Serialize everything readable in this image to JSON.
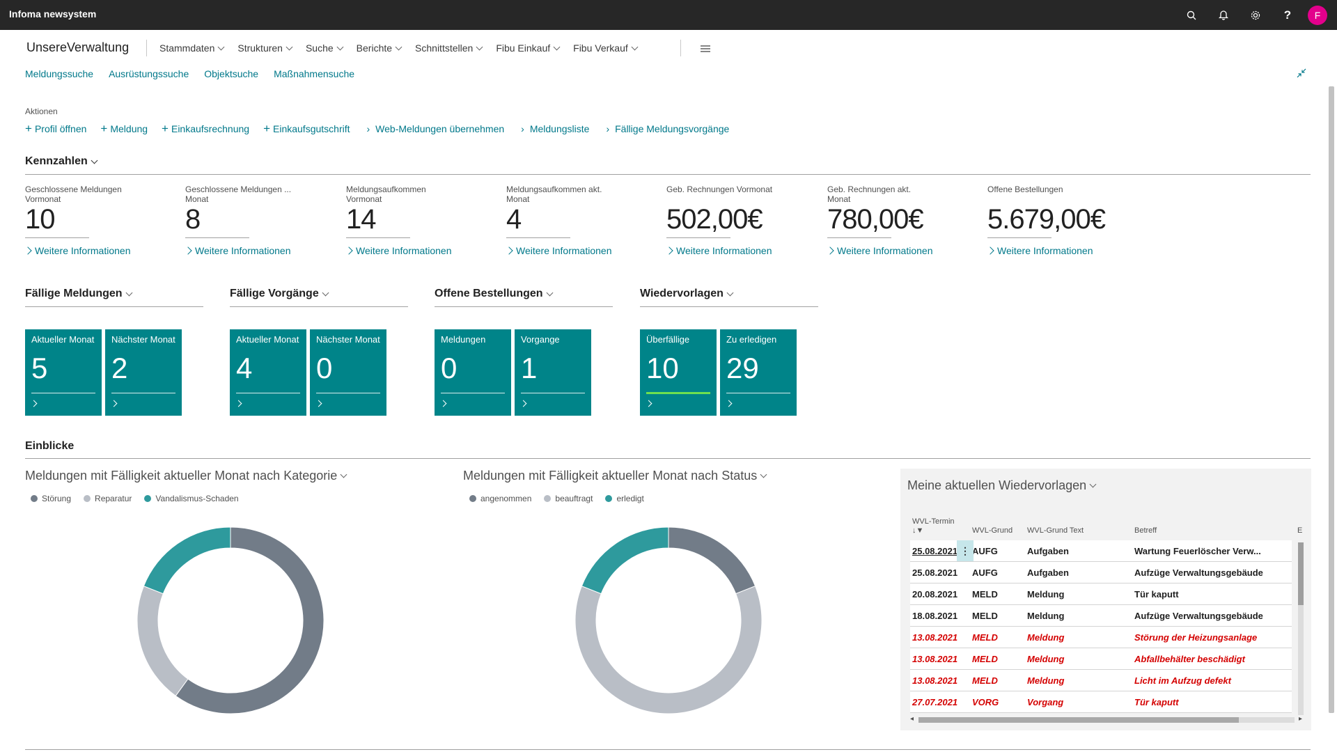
{
  "app": {
    "title": "Infoma newsystem",
    "avatar_letter": "F"
  },
  "topbar_icons": [
    "search-icon",
    "bell-icon",
    "gear-icon",
    "help-icon"
  ],
  "nav": {
    "company": "UnsereVerwaltung",
    "items": [
      {
        "label": "Stammdaten"
      },
      {
        "label": "Strukturen"
      },
      {
        "label": "Suche"
      },
      {
        "label": "Berichte"
      },
      {
        "label": "Schnittstellen"
      },
      {
        "label": "Fibu Einkauf"
      },
      {
        "label": "Fibu Verkauf"
      }
    ]
  },
  "sublinks": [
    "Meldungssuche",
    "Ausrüstungssuche",
    "Objektsuche",
    "Maßnahmensuche"
  ],
  "actions": {
    "label": "Aktionen",
    "items": [
      {
        "icon": "plus-icon",
        "label": "Profil öffnen"
      },
      {
        "icon": "plus-icon",
        "label": "Meldung"
      },
      {
        "icon": "plus-icon",
        "label": "Einkaufsrechnung"
      },
      {
        "icon": "plus-icon",
        "label": "Einkaufsgutschrift"
      },
      {
        "icon": "chevron-right-icon",
        "label": "Web-Meldungen übernehmen"
      },
      {
        "icon": "chevron-right-icon",
        "label": "Meldungsliste"
      },
      {
        "icon": "chevron-right-icon",
        "label": "Fällige Meldungsvorgänge"
      }
    ]
  },
  "kennzahlen": {
    "title": "Kennzahlen",
    "more_label": "Weitere Informationen",
    "items": [
      {
        "label1": "Geschlossene Meldungen",
        "label2": "Vormonat",
        "value": "10"
      },
      {
        "label1": "Geschlossene Meldungen ...",
        "label2": "Monat",
        "value": "8"
      },
      {
        "label1": "Meldungsaufkommen",
        "label2": "Vormonat",
        "value": "14"
      },
      {
        "label1": "Meldungsaufkommen akt.",
        "label2": "Monat",
        "value": "4"
      },
      {
        "label1": "Geb. Rechnungen Vormonat",
        "label2": "",
        "value": "502,00€"
      },
      {
        "label1": "Geb. Rechnungen akt.",
        "label2": "Monat",
        "value": "780,00€"
      },
      {
        "label1": "Offene Bestellungen",
        "label2": "",
        "value": "5.679,00€"
      }
    ]
  },
  "tile_groups": [
    {
      "title": "Fällige Meldungen",
      "tiles": [
        {
          "label": "Aktueller Monat",
          "value": "5"
        },
        {
          "label": "Nächster Monat",
          "value": "2"
        }
      ]
    },
    {
      "title": "Fällige Vorgänge",
      "tiles": [
        {
          "label": "Aktueller Monat",
          "value": "4"
        },
        {
          "label": "Nächster Monat",
          "value": "0"
        }
      ]
    },
    {
      "title": "Offene Bestellungen",
      "tiles": [
        {
          "label": "Meldungen",
          "value": "0"
        },
        {
          "label": "Vorgange",
          "value": "1"
        }
      ]
    },
    {
      "title": "Wiedervorlagen",
      "tiles": [
        {
          "label": "Überfällige",
          "value": "10"
        },
        {
          "label": "Zu erledigen",
          "value": "29"
        }
      ]
    }
  ],
  "einblicke": {
    "title": "Einblicke"
  },
  "chart_data": [
    {
      "type": "pie",
      "title": "Meldungen mit Fälligkeit aktueller Monat nach Kategorie",
      "categories": [
        "Störung",
        "Reparatur",
        "Vandalismus-Schaden"
      ],
      "values": [
        60,
        21,
        19
      ],
      "colors": [
        "#727c88",
        "#b9bec6",
        "#2e9a9d"
      ],
      "legend": "top-left"
    },
    {
      "type": "pie",
      "title": "Meldungen mit Fälligkeit aktueller Monat nach Status",
      "categories": [
        "angenommen",
        "beauftragt",
        "erledigt"
      ],
      "values": [
        19,
        62,
        19
      ],
      "colors": [
        "#727c88",
        "#b9bec6",
        "#2e9a9d"
      ],
      "legend": "top-left"
    }
  ],
  "wiedervorlagen": {
    "title": "Meine aktuellen Wiedervorlagen",
    "columns": [
      "WVL-Termin",
      "WVL-Grund",
      "WVL-Grund Text",
      "Betreff",
      "E"
    ],
    "rows": [
      {
        "date": "25.08.2021",
        "grund": "AUFG",
        "text": "Aufgaben",
        "betreff": "Wartung Feuerlöscher Verw...",
        "overdue": false
      },
      {
        "date": "25.08.2021",
        "grund": "AUFG",
        "text": "Aufgaben",
        "betreff": "Aufzüge Verwaltungsgebäude",
        "overdue": false
      },
      {
        "date": "20.08.2021",
        "grund": "MELD",
        "text": "Meldung",
        "betreff": "Tür kaputt",
        "overdue": false
      },
      {
        "date": "18.08.2021",
        "grund": "MELD",
        "text": "Meldung",
        "betreff": "Aufzüge Verwaltungsgebäude",
        "overdue": false
      },
      {
        "date": "13.08.2021",
        "grund": "MELD",
        "text": "Meldung",
        "betreff": "Störung der Heizungsanlage",
        "overdue": true
      },
      {
        "date": "13.08.2021",
        "grund": "MELD",
        "text": "Meldung",
        "betreff": "Abfallbehälter beschädigt",
        "overdue": true
      },
      {
        "date": "13.08.2021",
        "grund": "MELD",
        "text": "Meldung",
        "betreff": "Licht im Aufzug defekt",
        "overdue": true
      },
      {
        "date": "27.07.2021",
        "grund": "VORG",
        "text": "Vorgang",
        "betreff": "Tür kaputt",
        "overdue": true
      }
    ]
  }
}
